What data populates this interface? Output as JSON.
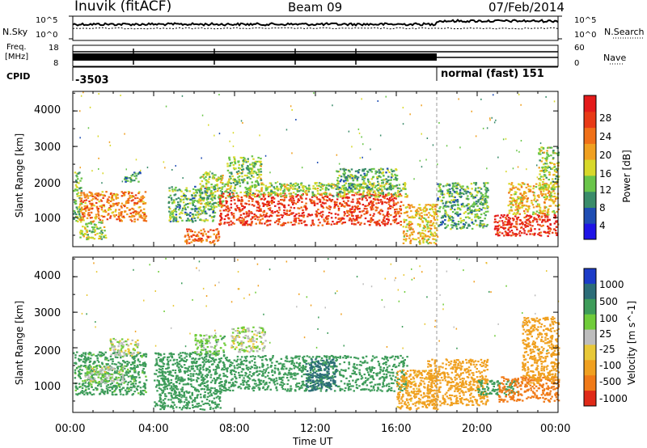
{
  "header": {
    "station": "Inuvik (fitACF)",
    "beam": "Beam 09",
    "date": "07/Feb/2014"
  },
  "status_panels": {
    "nsky_label": "N.Sky",
    "nsky_ticks": [
      "10^5",
      "10^0"
    ],
    "nsearch_label": "N.Search",
    "nsearch_ticks": [
      "10^5",
      "10^0"
    ],
    "freq_label": "Freq.",
    "freq_unit": "[MHz]",
    "freq_ticks": [
      "18",
      "8"
    ],
    "nave_label": "Nave",
    "nave_ticks": [
      "60",
      "0"
    ],
    "cpid_label": "CPID",
    "cpid_values": [
      {
        "text": "-3503",
        "start_hour": 0
      },
      {
        "text": "normal (fast) 151",
        "start_hour": 18
      }
    ]
  },
  "x_axis": {
    "label": "Time UT",
    "ticks": [
      "00:00",
      "04:00",
      "08:00",
      "12:00",
      "16:00",
      "20:00",
      "00:00"
    ],
    "range_hours": [
      0,
      24
    ]
  },
  "chart_data": [
    {
      "type": "heatmap",
      "name": "power",
      "ylabel": "Slant Range [km]",
      "yticks": [
        "1000",
        "2000",
        "3000",
        "4000"
      ],
      "ylim": [
        180,
        4550
      ],
      "colorbar": {
        "label": "Power [dB]",
        "ticks": [
          "4",
          "8",
          "12",
          "16",
          "20",
          "24",
          "28"
        ],
        "colors": [
          "#1f14e6",
          "#1f4db3",
          "#3a8c6a",
          "#6ac54a",
          "#d8d82a",
          "#f0a020",
          "#f07018",
          "#e83a16",
          "#e41a1a"
        ]
      },
      "scatter_regions": [
        {
          "t0": 0.0,
          "t1": 0.4,
          "r0": 900,
          "r1": 2300,
          "v": 12
        },
        {
          "t0": 0.3,
          "t1": 3.6,
          "r0": 900,
          "r1": 1750,
          "v": 22
        },
        {
          "t0": 0.3,
          "t1": 1.6,
          "r0": 400,
          "r1": 900,
          "v": 14
        },
        {
          "t0": 2.5,
          "t1": 3.3,
          "r0": 2000,
          "r1": 2300,
          "v": 10
        },
        {
          "t0": 4.7,
          "t1": 7.0,
          "r0": 900,
          "r1": 1900,
          "v": 11
        },
        {
          "t0": 5.5,
          "t1": 7.2,
          "r0": 280,
          "r1": 700,
          "v": 24
        },
        {
          "t0": 6.2,
          "t1": 7.4,
          "r0": 1300,
          "r1": 2300,
          "v": 14
        },
        {
          "t0": 7.2,
          "t1": 16.2,
          "r0": 800,
          "r1": 1700,
          "v": 27
        },
        {
          "t0": 7.4,
          "t1": 16.5,
          "r0": 1600,
          "r1": 2000,
          "v": 14
        },
        {
          "t0": 7.6,
          "t1": 9.3,
          "r0": 2000,
          "r1": 2750,
          "v": 13
        },
        {
          "t0": 13.0,
          "t1": 16.0,
          "r0": 1800,
          "r1": 2400,
          "v": 11
        },
        {
          "t0": 16.3,
          "t1": 18.0,
          "r0": 280,
          "r1": 1400,
          "v": 18
        },
        {
          "t0": 18.0,
          "t1": 20.5,
          "r0": 700,
          "r1": 2000,
          "v": 11
        },
        {
          "t0": 20.8,
          "t1": 24.0,
          "r0": 500,
          "r1": 1100,
          "v": 28
        },
        {
          "t0": 21.5,
          "t1": 24.0,
          "r0": 1100,
          "r1": 2000,
          "v": 18
        },
        {
          "t0": 23.0,
          "t1": 24.0,
          "r0": 1800,
          "r1": 3000,
          "v": 14
        }
      ]
    },
    {
      "type": "heatmap",
      "name": "velocity",
      "ylabel": "Slant Range [km]",
      "yticks": [
        "1000",
        "2000",
        "3000",
        "4000"
      ],
      "ylim": [
        180,
        4550
      ],
      "colorbar": {
        "label": "Velocity [m s^-1]",
        "ticks": [
          "1000",
          "500",
          "100",
          "25",
          "-25",
          "-100",
          "-500",
          "-1000"
        ],
        "colors": [
          "#1c3cc8",
          "#2c6d78",
          "#3e9c5a",
          "#70cc3a",
          "#bdbdbd",
          "#e8c838",
          "#f0a020",
          "#f07a18",
          "#e02a18"
        ]
      },
      "scatter_regions": [
        {
          "t0": 0.0,
          "t1": 3.6,
          "r0": 700,
          "r1": 1900,
          "v": 150
        },
        {
          "t0": 0.5,
          "t1": 2.5,
          "r0": 1000,
          "r1": 1500,
          "v": 15
        },
        {
          "t0": 1.8,
          "t1": 3.2,
          "r0": 1800,
          "r1": 2300,
          "v": 0
        },
        {
          "t0": 4.0,
          "t1": 7.3,
          "r0": 280,
          "r1": 1900,
          "v": 200
        },
        {
          "t0": 6.0,
          "t1": 7.5,
          "r0": 1800,
          "r1": 2400,
          "v": 60
        },
        {
          "t0": 7.3,
          "t1": 16.5,
          "r0": 800,
          "r1": 1800,
          "v": 250
        },
        {
          "t0": 11.5,
          "t1": 13.0,
          "r0": 800,
          "r1": 1700,
          "v": 700
        },
        {
          "t0": 7.8,
          "t1": 9.5,
          "r0": 1900,
          "r1": 2600,
          "v": 0
        },
        {
          "t0": 16.0,
          "t1": 18.0,
          "r0": 280,
          "r1": 1400,
          "v": -150
        },
        {
          "t0": 17.5,
          "t1": 20.5,
          "r0": 400,
          "r1": 1700,
          "v": -400
        },
        {
          "t0": 20.0,
          "t1": 22.0,
          "r0": 700,
          "r1": 1100,
          "v": 300
        },
        {
          "t0": 21.0,
          "t1": 24.0,
          "r0": 500,
          "r1": 1200,
          "v": -700
        },
        {
          "t0": 22.2,
          "t1": 24.0,
          "r0": 1000,
          "r1": 2900,
          "v": -200
        }
      ]
    }
  ]
}
